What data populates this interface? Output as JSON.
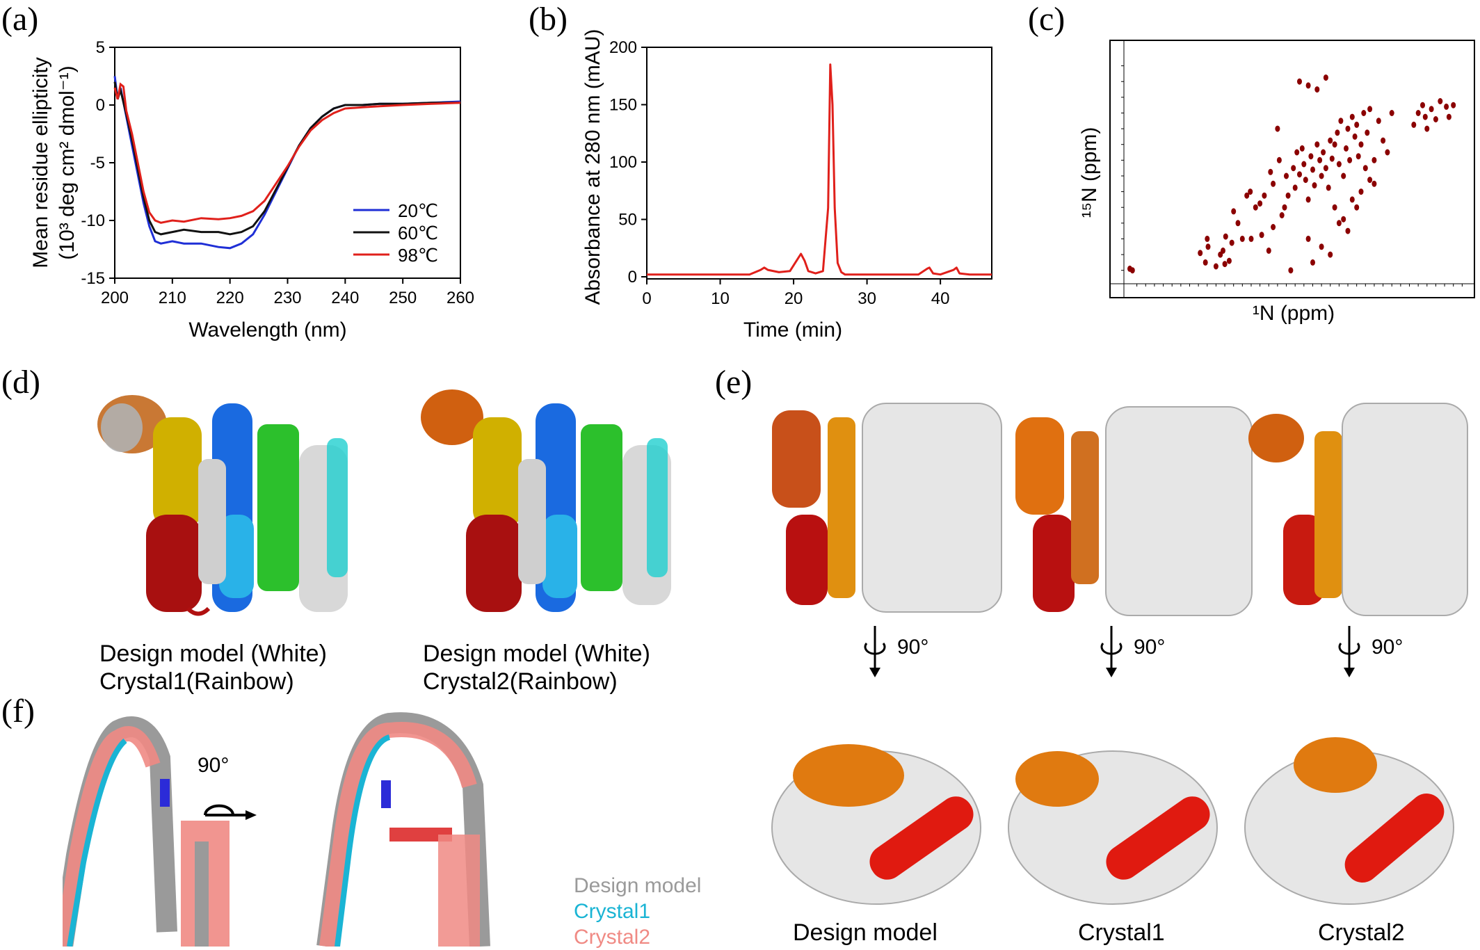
{
  "panel_labels": [
    "(a)",
    "(b)",
    "(c)",
    "(d)",
    "(e)",
    "(f)"
  ],
  "colors": {
    "blue": "#1f2fd6",
    "black": "#111111",
    "red": "#e0201b",
    "dark_red": "#8b0000",
    "crystal1": "#1ab4d4",
    "crystal2": "#f08a84",
    "design_gray": "#9a9a9a"
  },
  "chart_data": [
    {
      "type": "line",
      "panel": "(a)",
      "xlabel": "Wavelength (nm)",
      "ylabel_line1": "Mean residue ellipticity",
      "ylabel_line2": "(10³ deg cm² dmol⁻¹)",
      "xlim": [
        200,
        260
      ],
      "ylim": [
        -15,
        5
      ],
      "xticks": [
        200,
        210,
        220,
        230,
        240,
        250,
        260
      ],
      "yticks": [
        5,
        0,
        -5,
        -10,
        -15
      ],
      "legend_position": "bottom-right",
      "series": [
        {
          "name": "20℃",
          "color": "#1f2fd6",
          "x": [
            200,
            200.5,
            201,
            202,
            203,
            204,
            205,
            206,
            207,
            208,
            210,
            212,
            215,
            218,
            220,
            222,
            224,
            226,
            228,
            230,
            232,
            234,
            236,
            238,
            240,
            243,
            246,
            250,
            255,
            260
          ],
          "y": [
            2.5,
            0.5,
            1.5,
            -1.0,
            -3.5,
            -6.0,
            -8.5,
            -10.5,
            -11.8,
            -12.0,
            -11.8,
            -12.0,
            -12.0,
            -12.3,
            -12.4,
            -12.0,
            -11.2,
            -9.5,
            -7.5,
            -5.5,
            -3.5,
            -2.0,
            -1.0,
            -0.3,
            0.0,
            0.0,
            0.1,
            0.1,
            0.2,
            0.3
          ]
        },
        {
          "name": "60℃",
          "color": "#111111",
          "x": [
            200,
            200.5,
            201,
            202,
            203,
            204,
            205,
            206,
            207,
            208,
            210,
            212,
            215,
            218,
            220,
            222,
            224,
            226,
            228,
            230,
            232,
            234,
            236,
            238,
            240,
            243,
            246,
            250,
            255,
            260
          ],
          "y": [
            2.0,
            0.5,
            1.3,
            -0.8,
            -3.0,
            -5.5,
            -8.0,
            -10.0,
            -11.0,
            -11.2,
            -11.0,
            -10.8,
            -11.0,
            -11.0,
            -11.2,
            -11.0,
            -10.5,
            -9.2,
            -7.3,
            -5.4,
            -3.5,
            -2.0,
            -1.0,
            -0.3,
            0.0,
            0.0,
            0.1,
            0.1,
            0.2,
            0.2
          ]
        },
        {
          "name": "98℃",
          "color": "#e0201b",
          "x": [
            200,
            200.5,
            201,
            201.5,
            202,
            203,
            204,
            205,
            206,
            207,
            208,
            210,
            212,
            215,
            218,
            220,
            222,
            224,
            226,
            228,
            230,
            232,
            234,
            236,
            238,
            240,
            243,
            246,
            250,
            255,
            260
          ],
          "y": [
            1.5,
            0.5,
            1.8,
            1.6,
            -0.5,
            -2.5,
            -5.0,
            -7.5,
            -9.3,
            -10.0,
            -10.2,
            -10.0,
            -10.1,
            -9.8,
            -9.9,
            -9.8,
            -9.6,
            -9.2,
            -8.3,
            -6.8,
            -5.3,
            -3.6,
            -2.2,
            -1.3,
            -0.7,
            -0.3,
            -0.2,
            -0.1,
            0.0,
            0.1,
            0.2
          ]
        }
      ]
    },
    {
      "type": "line",
      "panel": "(b)",
      "xlabel": "Time (min)",
      "ylabel": "Absorbance at 280 nm (mAU)",
      "xlim": [
        0,
        47
      ],
      "ylim": [
        0,
        200
      ],
      "xticks": [
        0,
        10,
        20,
        30,
        40
      ],
      "yticks": [
        0,
        50,
        100,
        150,
        200
      ],
      "series": [
        {
          "color": "#e0201b",
          "x": [
            0,
            5,
            10,
            14,
            15.5,
            16,
            16.5,
            18,
            19.5,
            20.5,
            21,
            21.5,
            22,
            23,
            24,
            24.7,
            25,
            25.3,
            25.6,
            26,
            26.5,
            27,
            30,
            35,
            37,
            38.2,
            38.5,
            39,
            40,
            41.8,
            42.2,
            42.6,
            44,
            47
          ],
          "y": [
            2,
            2,
            2,
            2,
            6,
            8,
            6,
            4,
            5,
            15,
            20,
            14,
            5,
            3,
            5,
            60,
            185,
            150,
            60,
            12,
            4,
            2,
            2,
            2,
            2,
            7,
            8,
            3,
            2,
            6,
            8,
            3,
            2,
            2
          ]
        }
      ]
    },
    {
      "type": "scatter",
      "panel": "(c)",
      "xlabel": "¹N (ppm)",
      "ylabel": "¹⁵N (ppm)",
      "series": [
        {
          "color": "#8b0000",
          "x": [
            10.08,
            10.05,
            8.99,
            9.02,
            8.92,
            8.95,
            9.19,
            9.2,
            9.28,
            9.22,
            9.1,
            9.05,
            9.0,
            8.85,
            8.8,
            8.71,
            8.65,
            8.58,
            8.55,
            8.48,
            8.45,
            8.4,
            8.38,
            8.32,
            8.3,
            8.28,
            8.22,
            8.2,
            8.18,
            8.15,
            8.12,
            8.1,
            8.08,
            8.05,
            8.02,
            8.0,
            7.98,
            7.95,
            7.92,
            7.9,
            7.88,
            7.85,
            7.82,
            7.8,
            7.78,
            7.75,
            7.72,
            7.7,
            7.68,
            7.65,
            7.62,
            7.6,
            7.58,
            7.55,
            7.52,
            7.5,
            7.48,
            7.45,
            7.42,
            7.4,
            7.38,
            7.35,
            7.3,
            7.25,
            7.2,
            7.15,
            7.1,
            6.85,
            6.8,
            6.75,
            6.72,
            6.7,
            6.65,
            6.6,
            6.55,
            6.48,
            6.45,
            6.4,
            8.15,
            8.05,
            7.95,
            7.85,
            7.75,
            7.65,
            7.55,
            7.45,
            7.35,
            8.35,
            8.45,
            8.6,
            8.75,
            8.9,
            8.05,
            7.9,
            7.7,
            7.5,
            7.3,
            7.6,
            7.8,
            8.0,
            8.25,
            8.5,
            8.7
          ],
          "y": [
            127.8,
            128.0,
            123.7,
            125.5,
            124.5,
            126.8,
            125.0,
            124.0,
            125.8,
            127.0,
            127.5,
            126.0,
            127.2,
            122.0,
            124.0,
            118.0,
            120.0,
            123.5,
            118.5,
            115.5,
            117.0,
            110.0,
            114.0,
            120.0,
            116.0,
            118.5,
            115.0,
            117.5,
            113.0,
            115.8,
            112.5,
            114.5,
            116.5,
            119.0,
            113.5,
            115.2,
            117.2,
            112.0,
            114.0,
            116.0,
            113.0,
            115.0,
            117.5,
            111.5,
            113.8,
            112.0,
            110.5,
            114.5,
            109.0,
            116.0,
            112.5,
            110.0,
            114.0,
            108.5,
            111.0,
            109.5,
            113.5,
            112.0,
            108.0,
            115.0,
            110.5,
            107.5,
            114.0,
            109.0,
            111.5,
            113.0,
            108.0,
            109.5,
            108.0,
            107.0,
            108.5,
            110.0,
            107.5,
            108.8,
            106.5,
            107.2,
            108.5,
            107.0,
            104.0,
            104.5,
            105.0,
            103.5,
            120.0,
            121.5,
            119.0,
            118.0,
            116.5,
            121.0,
            122.5,
            119.5,
            118.5,
            120.5,
            124.0,
            125.0,
            122.0,
            120.0,
            117.0,
            123.0,
            126.0,
            127.0,
            128.0,
            125.5,
            124.0
          ]
        }
      ]
    }
  ],
  "panel_d": {
    "captions": [
      [
        "Design model (White)",
        "Crystal1(Rainbow)"
      ],
      [
        "Design model (White)",
        "Crystal2(Rainbow)"
      ]
    ]
  },
  "panel_e": {
    "rotation_label": "90°",
    "captions": [
      "Design model",
      "Crystal1",
      "Crystal2"
    ]
  },
  "panel_f": {
    "rotation_label": "90°",
    "legend": [
      {
        "name": "Design model",
        "color": "#9a9a9a"
      },
      {
        "name": "Crystal1",
        "color": "#1ab4d4"
      },
      {
        "name": "Crystal2",
        "color": "#f08a84"
      }
    ]
  }
}
